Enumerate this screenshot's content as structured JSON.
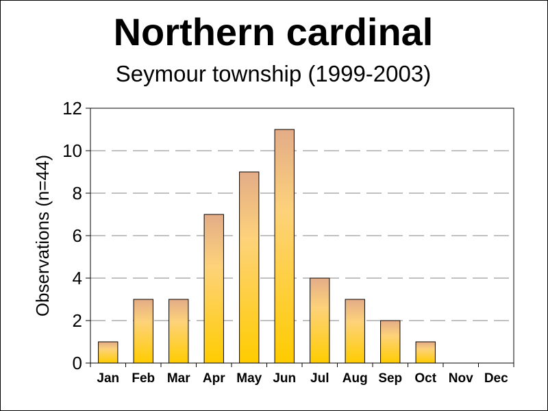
{
  "chart_data": {
    "type": "bar",
    "title": "Northern cardinal",
    "subtitle": "Seymour township (1999-2003)",
    "xlabel": "",
    "ylabel": "Observations (n=44)",
    "categories": [
      "Jan",
      "Feb",
      "Mar",
      "Apr",
      "May",
      "Jun",
      "Jul",
      "Aug",
      "Sep",
      "Oct",
      "Nov",
      "Dec"
    ],
    "values": [
      1,
      3,
      3,
      7,
      9,
      11,
      4,
      3,
      2,
      1,
      0,
      0
    ],
    "ylim": [
      0,
      12
    ],
    "yticks": [
      0,
      2,
      4,
      6,
      8,
      10,
      12
    ],
    "grid": "horizontal dashed",
    "legend": "none",
    "colors": {
      "bar_top": "#e3ac88",
      "bar_mid": "#fdd27a",
      "bar_bottom": "#ffcc00",
      "bar_outline": "#000000",
      "grid": "#808080"
    }
  }
}
